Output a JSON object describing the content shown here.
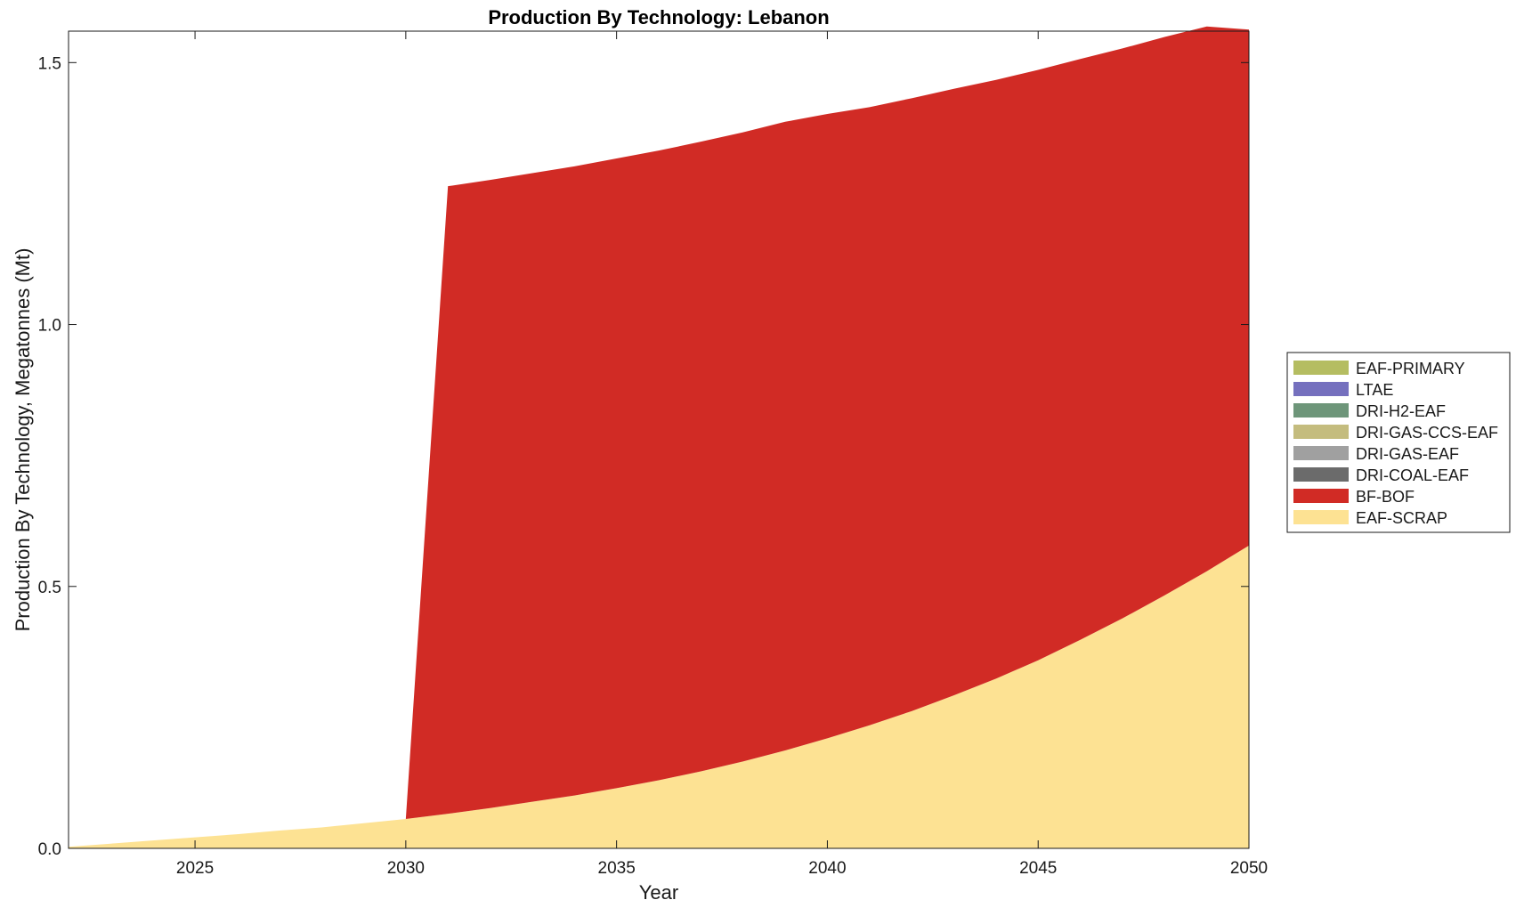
{
  "chart_data": {
    "type": "area",
    "stacked": true,
    "title": "Production By Technology: Lebanon",
    "xlabel": "Year",
    "ylabel": "Production By Technology, Megatonnes (Mt)",
    "xlim": [
      2022,
      2050
    ],
    "ylim": [
      0,
      1.56
    ],
    "xticks": [
      2025,
      2030,
      2035,
      2040,
      2045,
      2050
    ],
    "yticks": [
      0.0,
      0.5,
      1.0,
      1.5
    ],
    "ytick_labels": [
      "0.0",
      "0.5",
      "1.0",
      "1.5"
    ],
    "grid": false,
    "legend_position": "right",
    "x": [
      2022,
      2023,
      2024,
      2025,
      2026,
      2027,
      2028,
      2029,
      2030,
      2031,
      2032,
      2033,
      2034,
      2035,
      2036,
      2037,
      2038,
      2039,
      2040,
      2041,
      2042,
      2043,
      2044,
      2045,
      2046,
      2047,
      2048,
      2049,
      2050
    ],
    "series": [
      {
        "name": "EAF-PRIMARY",
        "color": "#b5bd61",
        "values": [
          0,
          0,
          0,
          0,
          0,
          0,
          0,
          0,
          0,
          0,
          0,
          0,
          0,
          0,
          0,
          0,
          0,
          0,
          0,
          0,
          0,
          0,
          0,
          0,
          0,
          0,
          0,
          0,
          0
        ]
      },
      {
        "name": "LTAE",
        "color": "#7570be",
        "values": [
          0,
          0,
          0,
          0,
          0,
          0,
          0,
          0,
          0,
          0,
          0,
          0,
          0,
          0,
          0,
          0,
          0,
          0,
          0,
          0,
          0,
          0,
          0,
          0,
          0,
          0,
          0,
          0,
          0
        ]
      },
      {
        "name": "DRI-H2-EAF",
        "color": "#6e967a",
        "values": [
          0,
          0,
          0,
          0,
          0,
          0,
          0,
          0,
          0,
          0,
          0,
          0,
          0,
          0,
          0,
          0,
          0,
          0,
          0,
          0,
          0,
          0,
          0,
          0,
          0,
          0,
          0,
          0,
          0
        ]
      },
      {
        "name": "DRI-GAS-CCS-EAF",
        "color": "#c4bc7e",
        "values": [
          0,
          0,
          0,
          0,
          0,
          0,
          0,
          0,
          0,
          0,
          0,
          0,
          0,
          0,
          0,
          0,
          0,
          0,
          0,
          0,
          0,
          0,
          0,
          0,
          0,
          0,
          0,
          0,
          0
        ]
      },
      {
        "name": "DRI-GAS-EAF",
        "color": "#a0a0a0",
        "values": [
          0,
          0,
          0,
          0,
          0,
          0,
          0,
          0,
          0,
          0,
          0,
          0,
          0,
          0,
          0,
          0,
          0,
          0,
          0,
          0,
          0,
          0,
          0,
          0,
          0,
          0,
          0,
          0,
          0
        ]
      },
      {
        "name": "DRI-COAL-EAF",
        "color": "#6b6b6b",
        "values": [
          0,
          0,
          0,
          0,
          0,
          0,
          0,
          0,
          0,
          0,
          0,
          0,
          0,
          0,
          0,
          0,
          0,
          0,
          0,
          0,
          0,
          0,
          0,
          0,
          0,
          0,
          0,
          0,
          0
        ]
      },
      {
        "name": "BF-BOF",
        "color": "#d12b25",
        "values": [
          0,
          0,
          0,
          0,
          0,
          0,
          0,
          0,
          0,
          1.198,
          1.199,
          1.2,
          1.201,
          1.202,
          1.202,
          1.202,
          1.201,
          1.2,
          1.192,
          1.18,
          1.17,
          1.158,
          1.143,
          1.127,
          1.109,
          1.088,
          1.066,
          1.04,
          0.985
        ]
      },
      {
        "name": "EAF-SCRAP",
        "color": "#fde293",
        "values": [
          0.003,
          0.009,
          0.015,
          0.021,
          0.027,
          0.034,
          0.04,
          0.048,
          0.056,
          0.066,
          0.077,
          0.089,
          0.101,
          0.115,
          0.13,
          0.147,
          0.166,
          0.187,
          0.21,
          0.235,
          0.262,
          0.292,
          0.324,
          0.359,
          0.398,
          0.439,
          0.483,
          0.529,
          0.578
        ]
      }
    ]
  }
}
